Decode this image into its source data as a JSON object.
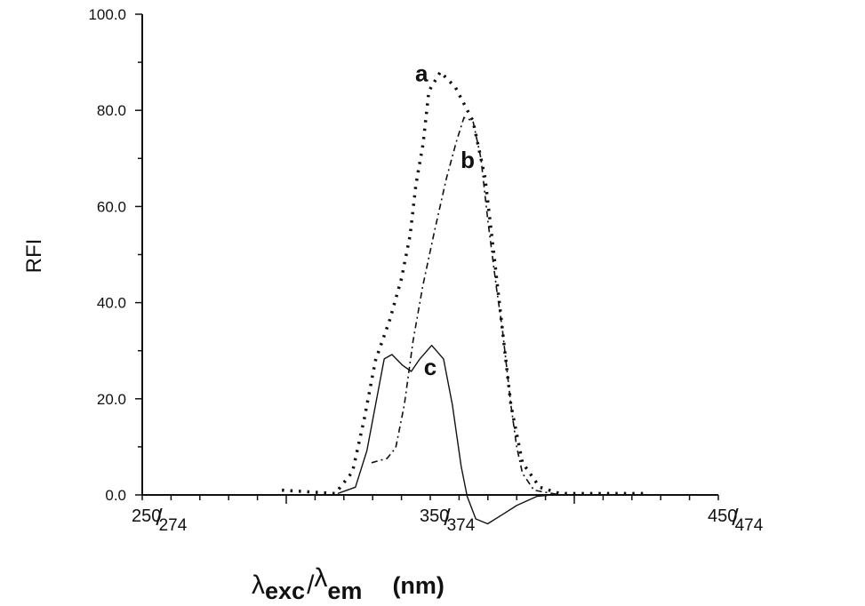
{
  "chart_data": {
    "type": "line",
    "title": "",
    "ylabel": "RFI",
    "xlabel": "λexc/λem (nm)",
    "xlabel_parts": {
      "lambda1": "λ",
      "sub1": "exc",
      "slash": "/",
      "lambda2": "λ",
      "sub2": "em",
      "unit": "(nm)"
    },
    "xlim": [
      250,
      450
    ],
    "ylim": [
      0,
      100
    ],
    "grid": false,
    "y_ticks": [
      {
        "value": 0,
        "label": "0.0"
      },
      {
        "value": 20,
        "label": "20.0"
      },
      {
        "value": 40,
        "label": "40.0"
      },
      {
        "value": 60,
        "label": "60.0"
      },
      {
        "value": 80,
        "label": "80.0"
      },
      {
        "value": 100,
        "label": "100.0"
      }
    ],
    "x_ticks": [
      {
        "value": 250,
        "label_exc": "250",
        "label_em": "274"
      },
      {
        "value": 350,
        "label_exc": "350",
        "label_em": "374"
      },
      {
        "value": 450,
        "label_exc": "450",
        "label_em": "474"
      }
    ],
    "series": [
      {
        "name": "a",
        "style": "dotted",
        "x": [
          298.5,
          317,
          323,
          327,
          331,
          336,
          340,
          343,
          345,
          347.5,
          349.5,
          353.5,
          358.7,
          364.8,
          369,
          372,
          375,
          378,
          382,
          388,
          395,
          405,
          416,
          424
        ],
        "y": [
          1.0,
          0.3,
          4.8,
          15.6,
          28,
          36.5,
          45,
          54,
          64.5,
          73,
          84,
          88,
          84.8,
          77.8,
          66,
          50.5,
          34.6,
          18.7,
          6.7,
          1.6,
          0.3,
          0.3,
          0.3,
          0.3
        ]
      },
      {
        "name": "b",
        "style": "dash-dot",
        "x": [
          329.6,
          335,
          338,
          341,
          344,
          347.4,
          351.5,
          355.6,
          359,
          361.7,
          364.8,
          367.6,
          370,
          373,
          375,
          378,
          380,
          382,
          386,
          395
        ],
        "y": [
          6.7,
          7.6,
          9.8,
          18.7,
          32,
          43.5,
          55,
          65.8,
          73.4,
          78.5,
          77.8,
          70,
          57,
          43,
          34.6,
          18.7,
          10,
          4.5,
          1,
          0
        ]
      },
      {
        "name": "c",
        "style": "solid",
        "x": [
          317.9,
          324,
          328,
          331,
          334,
          336.7,
          340.3,
          343.4,
          346.4,
          350.5,
          354.6,
          357.7,
          360.7,
          362.8,
          365.8,
          369.9,
          375,
          380,
          387,
          392
        ],
        "y": [
          0.3,
          1.6,
          9.2,
          18.7,
          28.3,
          29.2,
          27,
          25.7,
          28.3,
          31.1,
          28.3,
          18.7,
          6,
          -0.3,
          -5,
          -6,
          -4.1,
          -2.2,
          -0.3,
          0
        ]
      }
    ],
    "annotations": [
      {
        "text": "a",
        "x": 347,
        "y": 86
      },
      {
        "text": "b",
        "x": 363,
        "y": 68
      },
      {
        "text": "c",
        "x": 350,
        "y": 25
      }
    ],
    "colors": {
      "ink": "#111111",
      "background": "#ffffff"
    }
  }
}
